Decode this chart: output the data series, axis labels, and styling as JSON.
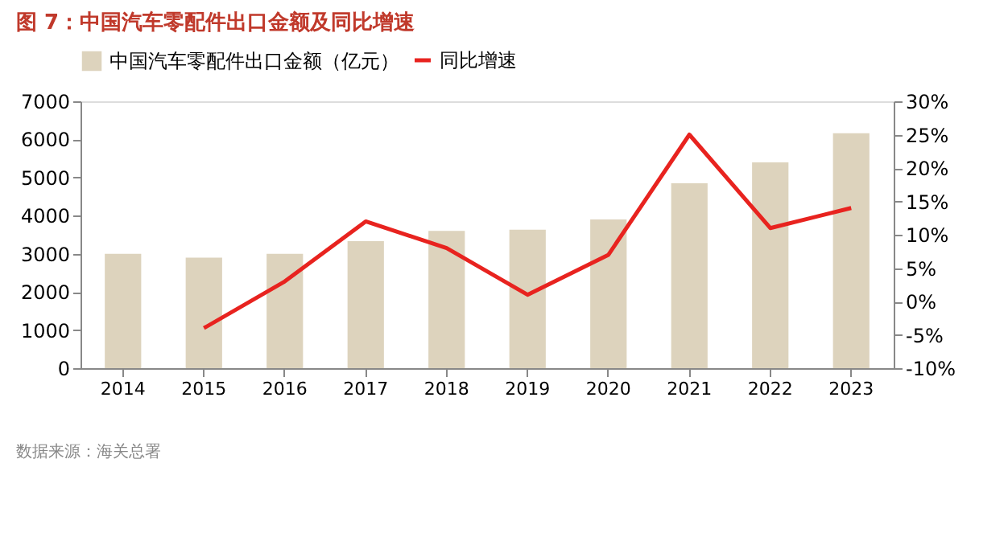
{
  "chart_data": {
    "type": "bar",
    "title": "图 7：中国汽车零配件出口金额及同比增速",
    "categories": [
      "2014",
      "2015",
      "2016",
      "2017",
      "2018",
      "2019",
      "2020",
      "2021",
      "2022",
      "2023"
    ],
    "series": [
      {
        "name": "中国汽车零配件出口金额（亿元）",
        "color": "#ddd3bd",
        "values": [
          3000,
          2900,
          3000,
          3330,
          3600,
          3630,
          3900,
          4850,
          5400,
          6160
        ]
      },
      {
        "name": "同比增速",
        "type": "line",
        "axis": "y2",
        "color": "#e8231f",
        "values": [
          null,
          -4,
          3,
          12,
          8,
          1,
          7,
          25,
          11,
          14
        ]
      }
    ],
    "ylim": [
      0,
      7000
    ],
    "yticks": [
      0,
      1000,
      2000,
      3000,
      4000,
      5000,
      6000,
      7000
    ],
    "y2lim": [
      -10,
      30
    ],
    "y2ticks": [
      {
        "value": -10,
        "label": "-10%"
      },
      {
        "value": -5,
        "label": "-5%"
      },
      {
        "value": 0,
        "label": "0%"
      },
      {
        "value": 5,
        "label": "5%"
      },
      {
        "value": 10,
        "label": "10%"
      },
      {
        "value": 15,
        "label": "15%"
      },
      {
        "value": 20,
        "label": "20%"
      },
      {
        "value": 25,
        "label": "25%"
      },
      {
        "value": 30,
        "label": "30%"
      }
    ],
    "legend": "top",
    "grid": false,
    "marker": "none",
    "line_style": "solid",
    "annotations": [
      "数据来源：海关总署"
    ]
  }
}
